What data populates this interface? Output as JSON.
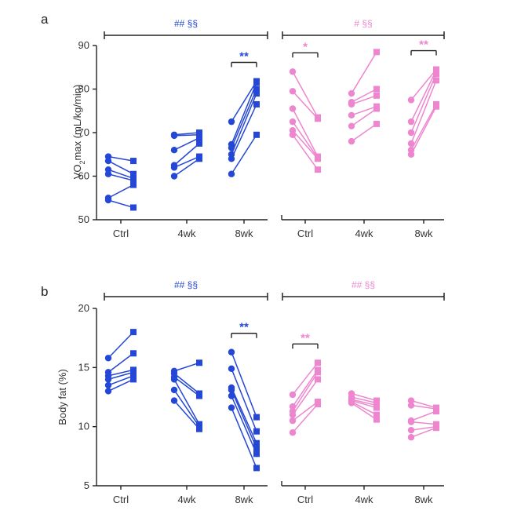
{
  "colors": {
    "blue": "#2447d6",
    "pink": "#ee86cf",
    "axis": "#222222"
  },
  "chart_data": [
    {
      "panel": "a",
      "type": "scatter",
      "ylabel_main": "VO",
      "ylabel_sub": "2",
      "ylabel_rest": "max (mL/kg/min)",
      "ylim": [
        50,
        90
      ],
      "yticks": [
        "50",
        "60",
        "70",
        "80",
        "90"
      ],
      "categories": [
        "Ctrl",
        "4wk",
        "8wk"
      ],
      "groups": [
        {
          "color": "blue",
          "overall_stat": "## §§",
          "pairs": [
            {
              "category": "Ctrl",
              "pre": [
                64.5,
                63.5,
                61.5,
                60.5,
                55.0,
                54.5
              ],
              "post": [
                63.5,
                60.5,
                59.5,
                59.0,
                58.0,
                52.8
              ],
              "sig": ""
            },
            {
              "category": "4wk",
              "pre": [
                69.5,
                69.3,
                66.0,
                62.5,
                62.0,
                60.0
              ],
              "post": [
                70.0,
                69.5,
                68.8,
                67.5,
                64.5,
                64.0
              ],
              "sig": ""
            },
            {
              "category": "8wk",
              "pre": [
                72.5,
                67.3,
                66.5,
                65.0,
                64.0,
                60.5
              ],
              "post": [
                81.8,
                81.5,
                80.0,
                79.0,
                76.5,
                69.5
              ],
              "sig": "**"
            }
          ]
        },
        {
          "color": "pink",
          "overall_stat": "# §§",
          "pairs": [
            {
              "category": "Ctrl",
              "pre": [
                84.0,
                79.5,
                75.5,
                72.5,
                70.5,
                69.5
              ],
              "post": [
                73.5,
                73.2,
                64.5,
                64.2,
                64.0,
                61.5
              ],
              "sig": "*"
            },
            {
              "category": "4wk",
              "pre": [
                79.0,
                77.0,
                76.5,
                74.0,
                71.5,
                68.0
              ],
              "post": [
                88.5,
                80.0,
                78.5,
                76.0,
                75.5,
                72.0
              ],
              "sig": ""
            },
            {
              "category": "8wk",
              "pre": [
                77.5,
                72.5,
                70.0,
                67.5,
                66.0,
                65.0
              ],
              "post": [
                84.5,
                84.3,
                83.5,
                82.0,
                76.5,
                76.0
              ],
              "sig": "**"
            }
          ]
        }
      ]
    },
    {
      "panel": "b",
      "type": "scatter",
      "ylabel": "Body fat (%)",
      "ylim": [
        5,
        20
      ],
      "yticks": [
        "5",
        "10",
        "15",
        "20"
      ],
      "categories": [
        "Ctrl",
        "4wk",
        "8wk"
      ],
      "groups": [
        {
          "color": "blue",
          "overall_stat": "## §§",
          "pairs": [
            {
              "category": "Ctrl",
              "pre": [
                15.8,
                14.6,
                14.3,
                14.0,
                13.5,
                13.0
              ],
              "post": [
                18.0,
                16.2,
                14.8,
                14.6,
                14.3,
                14.0
              ],
              "sig": ""
            },
            {
              "category": "4wk",
              "pre": [
                14.7,
                14.5,
                14.2,
                14.0,
                13.1,
                12.2
              ],
              "post": [
                15.4,
                12.8,
                12.6,
                10.2,
                10.0,
                9.8
              ],
              "sig": ""
            },
            {
              "category": "8wk",
              "pre": [
                16.3,
                14.9,
                13.3,
                13.1,
                12.6,
                11.6
              ],
              "post": [
                10.8,
                9.6,
                8.6,
                8.2,
                7.7,
                6.5
              ],
              "sig": "**"
            }
          ]
        },
        {
          "color": "pink",
          "overall_stat": "## §§",
          "pairs": [
            {
              "category": "Ctrl",
              "pre": [
                12.7,
                11.7,
                11.3,
                11.0,
                10.5,
                9.5
              ],
              "post": [
                15.4,
                14.8,
                14.6,
                14.0,
                12.1,
                11.9
              ],
              "sig": "**"
            },
            {
              "category": "4wk",
              "pre": [
                12.8,
                12.5,
                12.3,
                12.2,
                12.1,
                12.0
              ],
              "post": [
                12.2,
                12.0,
                11.8,
                11.6,
                11.0,
                10.6
              ],
              "sig": ""
            },
            {
              "category": "8wk",
              "pre": [
                12.2,
                11.8,
                10.5,
                10.4,
                9.7,
                9.1
              ],
              "post": [
                11.6,
                11.5,
                11.3,
                10.2,
                10.0,
                9.9
              ],
              "sig": ""
            }
          ]
        }
      ]
    }
  ]
}
